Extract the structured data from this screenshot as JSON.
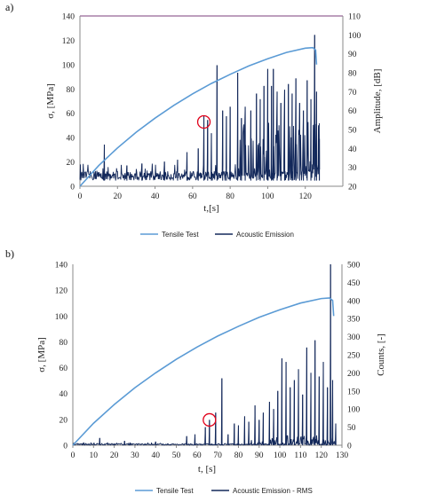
{
  "colors": {
    "tensile": "#5b9bd5",
    "emission": "#13285a",
    "axis_top_a": "#7b3f7b",
    "marker": "#e0001a",
    "grid_axis": "#888888"
  },
  "chart_data": [
    {
      "panel_label": "a)",
      "type": "line",
      "xlabel": "t,[s]",
      "ylabel": "σ, [MPa]",
      "y2label": "Amplitude, [dB]",
      "xlim": [
        0,
        140
      ],
      "ylim": [
        0,
        140
      ],
      "y2lim": [
        20,
        110
      ],
      "x_ticks": [
        "0",
        "20",
        "40",
        "60",
        "80",
        "100",
        "120"
      ],
      "y_ticks": [
        "0",
        "20",
        "40",
        "60",
        "80",
        "100",
        "120",
        "140"
      ],
      "y2_ticks": [
        "20",
        "30",
        "40",
        "50",
        "60",
        "70",
        "80",
        "90",
        "100",
        "110"
      ],
      "legend": [
        "Tensile Test",
        "Acoustic Emission"
      ],
      "series": [
        {
          "name": "Tensile Test",
          "axis": "left",
          "x": [
            0,
            10,
            20,
            30,
            40,
            50,
            60,
            70,
            80,
            90,
            100,
            110,
            120,
            124,
            125.5,
            126
          ],
          "y": [
            0,
            17,
            31.5,
            44.5,
            56,
            66.5,
            76,
            84.5,
            92,
            99,
            104.8,
            110,
            113.5,
            114,
            112,
            100
          ]
        },
        {
          "name": "Acoustic Emission",
          "axis": "right",
          "baseline": [
            23,
            32
          ],
          "spikes": [
            {
              "x": 13,
              "y": 42
            },
            {
              "x": 25,
              "y": 31
            },
            {
              "x": 33,
              "y": 32
            },
            {
              "x": 45,
              "y": 33
            },
            {
              "x": 52,
              "y": 34
            },
            {
              "x": 57,
              "y": 38
            },
            {
              "x": 63,
              "y": 40
            },
            {
              "x": 66,
              "y": 57
            },
            {
              "x": 68,
              "y": 55
            },
            {
              "x": 70,
              "y": 48
            },
            {
              "x": 73,
              "y": 84
            },
            {
              "x": 76,
              "y": 60
            },
            {
              "x": 78,
              "y": 57
            },
            {
              "x": 80,
              "y": 62
            },
            {
              "x": 84,
              "y": 80
            },
            {
              "x": 86,
              "y": 56
            },
            {
              "x": 88,
              "y": 62
            },
            {
              "x": 91,
              "y": 60
            },
            {
              "x": 94,
              "y": 69
            },
            {
              "x": 96,
              "y": 66
            },
            {
              "x": 98,
              "y": 73
            },
            {
              "x": 100,
              "y": 82
            },
            {
              "x": 102,
              "y": 73
            },
            {
              "x": 103,
              "y": 82
            },
            {
              "x": 105,
              "y": 70
            },
            {
              "x": 107,
              "y": 64
            },
            {
              "x": 109,
              "y": 71
            },
            {
              "x": 111,
              "y": 74
            },
            {
              "x": 113,
              "y": 69
            },
            {
              "x": 115,
              "y": 77
            },
            {
              "x": 117,
              "y": 64
            },
            {
              "x": 119,
              "y": 60
            },
            {
              "x": 121,
              "y": 76
            },
            {
              "x": 123,
              "y": 66
            },
            {
              "x": 125,
              "y": 100
            },
            {
              "x": 126,
              "y": 70
            },
            {
              "x": 127.5,
              "y": 45
            }
          ]
        }
      ],
      "annotation": {
        "type": "circle",
        "x": 66,
        "y2": 54
      }
    },
    {
      "panel_label": "b)",
      "type": "line",
      "xlabel": "t, [s]",
      "ylabel": "σ, [MPa]",
      "y2label": "Counts, [-]",
      "xlim": [
        0,
        130
      ],
      "ylim": [
        0,
        140
      ],
      "y2lim": [
        0,
        500
      ],
      "x_ticks": [
        "0",
        "10",
        "20",
        "30",
        "40",
        "50",
        "60",
        "70",
        "80",
        "90",
        "100",
        "110",
        "120",
        "130"
      ],
      "y_ticks": [
        "0",
        "20",
        "40",
        "60",
        "80",
        "100",
        "120",
        "140"
      ],
      "y2_ticks": [
        "0",
        "50",
        "100",
        "150",
        "200",
        "250",
        "300",
        "350",
        "400",
        "450",
        "500"
      ],
      "legend": [
        "Tensile Test",
        "Acoustic Emission - RMS"
      ],
      "series": [
        {
          "name": "Tensile Test",
          "axis": "left",
          "x": [
            0,
            10,
            20,
            30,
            40,
            50,
            60,
            70,
            80,
            90,
            100,
            110,
            120,
            124,
            125.5,
            126
          ],
          "y": [
            0,
            17,
            31.5,
            44.5,
            56,
            66.5,
            76,
            84.5,
            92,
            99,
            104.8,
            110,
            113.5,
            114,
            112,
            100
          ]
        },
        {
          "name": "Acoustic Emission - RMS",
          "axis": "right",
          "baseline": [
            0,
            8
          ],
          "spikes": [
            {
              "x": 13,
              "y": 20
            },
            {
              "x": 25,
              "y": 12
            },
            {
              "x": 40,
              "y": 10
            },
            {
              "x": 55,
              "y": 25
            },
            {
              "x": 59,
              "y": 30
            },
            {
              "x": 64,
              "y": 50
            },
            {
              "x": 66,
              "y": 70
            },
            {
              "x": 69,
              "y": 90
            },
            {
              "x": 72,
              "y": 185
            },
            {
              "x": 75,
              "y": 30
            },
            {
              "x": 78,
              "y": 60
            },
            {
              "x": 80,
              "y": 55
            },
            {
              "x": 83,
              "y": 80
            },
            {
              "x": 85,
              "y": 65
            },
            {
              "x": 88,
              "y": 110
            },
            {
              "x": 90,
              "y": 70
            },
            {
              "x": 92,
              "y": 90
            },
            {
              "x": 95,
              "y": 120
            },
            {
              "x": 97,
              "y": 100
            },
            {
              "x": 99,
              "y": 150
            },
            {
              "x": 101,
              "y": 240
            },
            {
              "x": 103,
              "y": 230
            },
            {
              "x": 105,
              "y": 160
            },
            {
              "x": 107,
              "y": 180
            },
            {
              "x": 109,
              "y": 210
            },
            {
              "x": 111,
              "y": 140
            },
            {
              "x": 113,
              "y": 270
            },
            {
              "x": 115,
              "y": 200
            },
            {
              "x": 117,
              "y": 290
            },
            {
              "x": 119,
              "y": 190
            },
            {
              "x": 121,
              "y": 230
            },
            {
              "x": 123,
              "y": 160
            },
            {
              "x": 124.5,
              "y": 500
            },
            {
              "x": 125.5,
              "y": 180
            },
            {
              "x": 127,
              "y": 60
            }
          ]
        }
      ],
      "annotation": {
        "type": "circle",
        "x": 66,
        "y2": 70
      }
    }
  ]
}
